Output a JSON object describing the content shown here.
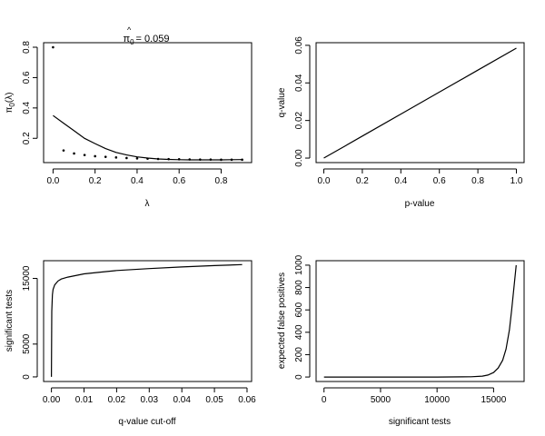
{
  "chart_data": [
    {
      "type": "scatter",
      "title_prefix": "π",
      "title_hat": "^",
      "title_sub": "0",
      "title_value": "= 0.059",
      "xlabel": "λ",
      "ylabel_main": "π",
      "ylabel_sub": "0",
      "ylabel_arg": "(λ)",
      "xlim": [
        -0.045,
        0.945
      ],
      "ylim": [
        0.04,
        0.83
      ],
      "xticks": [
        0.0,
        0.2,
        0.4,
        0.6,
        0.8
      ],
      "xtick_labels": [
        "0.0",
        "0.2",
        "0.4",
        "0.6",
        "0.8"
      ],
      "yticks": [
        0.2,
        0.4,
        0.6,
        0.8
      ],
      "ytick_labels": [
        "0.2",
        "0.4",
        "0.6",
        "0.8"
      ],
      "points": {
        "x": [
          0.0,
          0.05,
          0.1,
          0.15,
          0.2,
          0.25,
          0.3,
          0.35,
          0.4,
          0.45,
          0.5,
          0.55,
          0.6,
          0.65,
          0.7,
          0.75,
          0.8,
          0.85,
          0.9
        ],
        "y": [
          0.8,
          0.12,
          0.1,
          0.09,
          0.082,
          0.078,
          0.074,
          0.07,
          0.068,
          0.066,
          0.064,
          0.063,
          0.062,
          0.061,
          0.06,
          0.06,
          0.059,
          0.059,
          0.059
        ]
      },
      "smoother": {
        "x": [
          0.0,
          0.05,
          0.1,
          0.15,
          0.2,
          0.25,
          0.3,
          0.35,
          0.4,
          0.45,
          0.5,
          0.55,
          0.6,
          0.65,
          0.7,
          0.75,
          0.8,
          0.85,
          0.9
        ],
        "y": [
          0.35,
          0.3,
          0.25,
          0.2,
          0.165,
          0.132,
          0.107,
          0.09,
          0.078,
          0.07,
          0.064,
          0.061,
          0.059,
          0.058,
          0.058,
          0.058,
          0.058,
          0.059,
          0.06
        ]
      }
    },
    {
      "type": "line",
      "xlabel": "p-value",
      "ylabel": "q-value",
      "xlim": [
        -0.04,
        1.04
      ],
      "ylim": [
        -0.0024,
        0.0614
      ],
      "xticks": [
        0.0,
        0.2,
        0.4,
        0.6,
        0.8,
        1.0
      ],
      "xtick_labels": [
        "0.0",
        "0.2",
        "0.4",
        "0.6",
        "0.8",
        "1.0"
      ],
      "yticks": [
        0.0,
        0.02,
        0.04,
        0.06
      ],
      "ytick_labels": [
        "0.00",
        "0.02",
        "0.04",
        "0.06"
      ],
      "x": [
        0.0,
        0.02,
        0.05,
        0.1,
        0.2,
        0.4,
        0.6,
        0.8,
        1.0
      ],
      "y": [
        0.0,
        0.0012,
        0.0029,
        0.0058,
        0.0117,
        0.0234,
        0.0351,
        0.0468,
        0.0585
      ]
    },
    {
      "type": "line",
      "xlabel": "q-value cut-off",
      "ylabel": "significant tests",
      "xlim": [
        -0.0024,
        0.0614
      ],
      "ylim": [
        -700,
        17700
      ],
      "xticks": [
        0.0,
        0.01,
        0.02,
        0.03,
        0.04,
        0.05,
        0.06
      ],
      "xtick_labels": [
        "0.00",
        "0.01",
        "0.02",
        "0.03",
        "0.04",
        "0.05",
        "0.06"
      ],
      "yticks": [
        0,
        5000,
        15000
      ],
      "ytick_labels": [
        "0",
        "5000",
        "15000"
      ],
      "x": [
        0.0,
        0.0001,
        0.0003,
        0.0005,
        0.001,
        0.002,
        0.003,
        0.005,
        0.01,
        0.015,
        0.02,
        0.03,
        0.04,
        0.05,
        0.0585
      ],
      "y": [
        0,
        10000,
        12500,
        13300,
        14000,
        14600,
        14900,
        15200,
        15700,
        15950,
        16200,
        16500,
        16750,
        16950,
        17100
      ]
    },
    {
      "type": "line",
      "xlabel": "significant tests",
      "ylabel": "expected false positives",
      "xlim": [
        -700,
        17700
      ],
      "ylim": [
        -40,
        1040
      ],
      "xticks": [
        0,
        5000,
        10000,
        15000
      ],
      "xtick_labels": [
        "0",
        "5000",
        "10000",
        "15000"
      ],
      "yticks": [
        0,
        200,
        400,
        600,
        800,
        1000
      ],
      "ytick_labels": [
        "0",
        "200",
        "400",
        "600",
        "800",
        "1000"
      ],
      "x": [
        0,
        5000,
        10000,
        13000,
        14000,
        14500,
        15000,
        15400,
        15800,
        16100,
        16400,
        16600,
        16800,
        17000
      ],
      "y": [
        0,
        0,
        0,
        2,
        8,
        18,
        40,
        80,
        150,
        250,
        420,
        600,
        800,
        1000
      ]
    }
  ]
}
